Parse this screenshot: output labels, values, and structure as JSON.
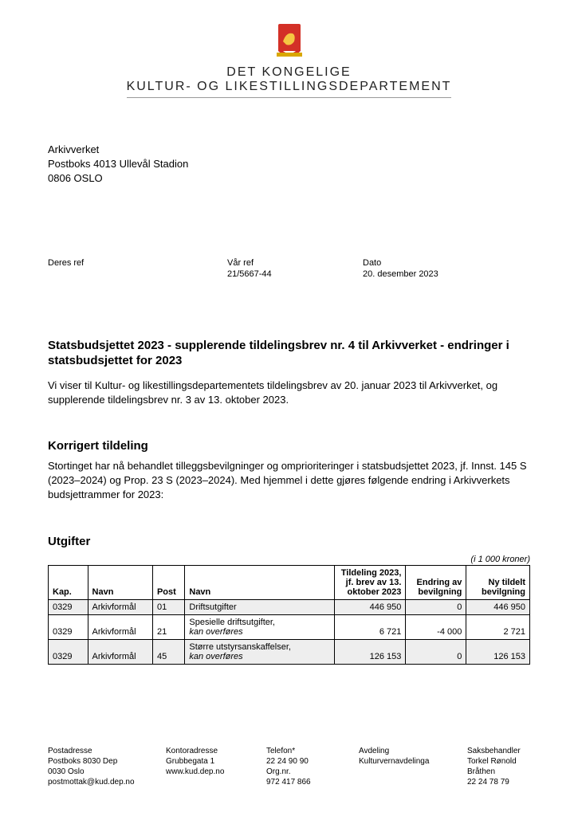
{
  "brand": {
    "line1": "DET KONGELIGE",
    "line2": "KULTUR- OG LIKESTILLINGSDEPARTEMENT",
    "crest_colors": {
      "shield": "#d33027",
      "band": "#d9a700",
      "lion": "#f5c642"
    }
  },
  "addressee": {
    "name": "Arkivverket",
    "street": "Postboks 4013 Ullevål Stadion",
    "city": "0806 OSLO"
  },
  "refs": {
    "deres_label": "Deres ref",
    "deres_value": "",
    "var_label": "Vår ref",
    "var_value": "21/5667-44",
    "dato_label": "Dato",
    "dato_value": "20. desember 2023"
  },
  "title": "Statsbudsjettet 2023 - supplerende tildelingsbrev nr. 4 til Arkivverket - endringer i statsbudsjettet for 2023",
  "intro": "Vi viser til Kultur- og likestillingsdepartementets tildelingsbrev av 20. januar 2023 til Arkivverket, og supplerende tildelingsbrev nr. 3 av 13. oktober 2023.",
  "section1": {
    "heading": "Korrigert tildeling",
    "body": "Stortinget har nå behandlet tilleggsbevilgninger og omprioriteringer i statsbudsjettet 2023, jf. Innst. 145 S (2023–2024) og Prop. 23 S (2023–2024). Med hjemmel i dette gjøres følgende endring i Arkivverkets budsjettrammer for 2023:"
  },
  "table": {
    "heading": "Utgifter",
    "unit": "(i 1 000 kroner)",
    "columns": {
      "kap": "Kap.",
      "navn1": "Navn",
      "post": "Post",
      "navn2": "Navn",
      "tildeling_l1": "Tildeling 2023,",
      "tildeling_l2": "jf. brev av 13.",
      "tildeling_l3": "oktober 2023",
      "endring_l1": "Endring av",
      "endring_l2": "bevilgning",
      "ny_l1": "Ny tildelt",
      "ny_l2": "bevilgning"
    },
    "rows": [
      {
        "kap": "0329",
        "navn1": "Arkivformål",
        "post": "01",
        "navn2": "Driftsutgifter",
        "sub": "",
        "tildeling": "446 950",
        "endring": "0",
        "ny": "446 950",
        "shade": true
      },
      {
        "kap": "0329",
        "navn1": "Arkivformål",
        "post": "21",
        "navn2": "Spesielle driftsutgifter,",
        "sub": "kan overføres",
        "tildeling": "6 721",
        "endring": "-4 000",
        "ny": "2 721",
        "shade": false
      },
      {
        "kap": "0329",
        "navn1": "Arkivformål",
        "post": "45",
        "navn2": "Større utstyrsanskaffelser,",
        "sub": "kan overføres",
        "tildeling": "126 153",
        "endring": "0",
        "ny": "126 153",
        "shade": true
      }
    ]
  },
  "footer": {
    "post": {
      "h": "Postadresse",
      "l1": "Postboks 8030 Dep",
      "l2": "0030 Oslo",
      "l3": "postmottak@kud.dep.no"
    },
    "kontor": {
      "h": "Kontoradresse",
      "l1": "Grubbegata 1",
      "l2": "",
      "l3": "www.kud.dep.no"
    },
    "telefon": {
      "h": "Telefon*",
      "l1": "22 24 90 90",
      "l2": "Org.nr.",
      "l3": "972 417 866"
    },
    "avdeling": {
      "h": "Avdeling",
      "l1": "Kulturvernavdelinga"
    },
    "saks": {
      "h": "Saksbehandler",
      "l1": "Torkel Rønold",
      "l2": "Bråthen",
      "l3": "22 24 78 79"
    }
  }
}
